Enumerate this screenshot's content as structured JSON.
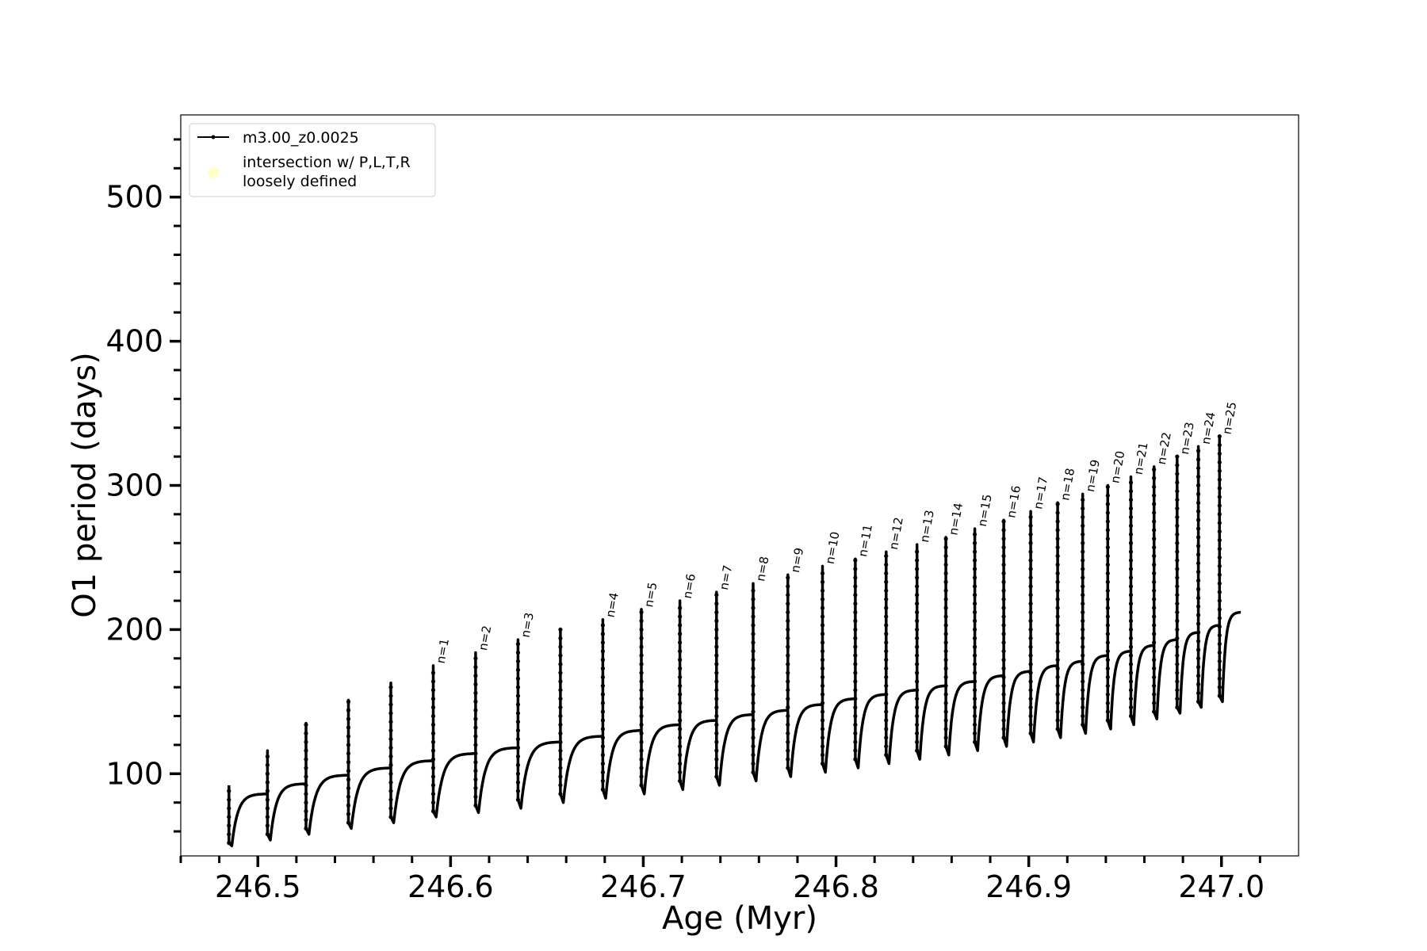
{
  "chart_data": {
    "type": "line",
    "xlabel": "Age (Myr)",
    "ylabel": "O1 period (days)",
    "xlim": [
      246.46,
      247.04
    ],
    "ylim": [
      43,
      557
    ],
    "xticks": [
      246.5,
      246.6,
      246.7,
      246.8,
      246.9,
      247.0
    ],
    "xtick_labels": [
      "246.5",
      "246.6",
      "246.7",
      "246.8",
      "246.9",
      "247.0"
    ],
    "yticks": [
      100,
      200,
      300,
      400,
      500
    ],
    "ytick_labels": [
      "100",
      "200",
      "300",
      "400",
      "500"
    ],
    "legend": {
      "position": "upper-left",
      "entries": [
        {
          "label": "m3.00_z0.0025",
          "marker": "line-dot",
          "color": "#000000"
        },
        {
          "label_line1": "intersection w/ P,L,T,R",
          "label_line2": "loosely defined",
          "marker": "circle",
          "color": "#ffffc8"
        }
      ]
    },
    "series": [
      {
        "name": "m3.00_z0.0025",
        "color": "#000000",
        "start_age": 246.485,
        "end_age": 247.01,
        "end_period": 212,
        "pulses": [
          {
            "age": 246.485,
            "peak": 92,
            "base": 52,
            "dip": 50,
            "plateau": 86
          },
          {
            "age": 246.505,
            "peak": 116,
            "base": 58,
            "dip": 54,
            "plateau": 93
          },
          {
            "age": 246.525,
            "peak": 135,
            "base": 62,
            "dip": 58,
            "plateau": 99
          },
          {
            "age": 246.547,
            "peak": 151,
            "base": 66,
            "dip": 62,
            "plateau": 104
          },
          {
            "age": 246.569,
            "peak": 163,
            "base": 70,
            "dip": 66,
            "plateau": 109
          },
          {
            "age": 246.591,
            "peak": 175,
            "base": 74,
            "dip": 70,
            "plateau": 114
          },
          {
            "age": 246.613,
            "peak": 184,
            "base": 78,
            "dip": 73,
            "plateau": 118
          },
          {
            "age": 246.635,
            "peak": 193,
            "base": 82,
            "dip": 76,
            "plateau": 122
          },
          {
            "age": 246.657,
            "peak": 200,
            "base": 86,
            "dip": 80,
            "plateau": 126
          },
          {
            "age": 246.679,
            "peak": 207,
            "base": 89,
            "dip": 83,
            "plateau": 130
          },
          {
            "age": 246.699,
            "peak": 214,
            "base": 92,
            "dip": 86,
            "plateau": 134
          },
          {
            "age": 246.719,
            "peak": 220,
            "base": 95,
            "dip": 89,
            "plateau": 137
          },
          {
            "age": 246.738,
            "peak": 226,
            "base": 98,
            "dip": 92,
            "plateau": 141
          },
          {
            "age": 246.757,
            "peak": 232,
            "base": 101,
            "dip": 95,
            "plateau": 144
          },
          {
            "age": 246.775,
            "peak": 238,
            "base": 104,
            "dip": 98,
            "plateau": 148
          },
          {
            "age": 246.793,
            "peak": 244,
            "base": 107,
            "dip": 101,
            "plateau": 152
          },
          {
            "age": 246.81,
            "peak": 249,
            "base": 110,
            "dip": 104,
            "plateau": 155
          },
          {
            "age": 246.826,
            "peak": 254,
            "base": 113,
            "dip": 107,
            "plateau": 158
          },
          {
            "age": 246.842,
            "peak": 259,
            "base": 116,
            "dip": 110,
            "plateau": 161
          },
          {
            "age": 246.857,
            "peak": 264,
            "base": 119,
            "dip": 113,
            "plateau": 164
          },
          {
            "age": 246.872,
            "peak": 270,
            "base": 122,
            "dip": 116,
            "plateau": 168
          },
          {
            "age": 246.887,
            "peak": 276,
            "base": 125,
            "dip": 119,
            "plateau": 171
          },
          {
            "age": 246.901,
            "peak": 282,
            "base": 128,
            "dip": 122,
            "plateau": 175
          },
          {
            "age": 246.915,
            "peak": 288,
            "base": 131,
            "dip": 125,
            "plateau": 178
          },
          {
            "age": 246.928,
            "peak": 294,
            "base": 134,
            "dip": 128,
            "plateau": 182
          },
          {
            "age": 246.941,
            "peak": 300,
            "base": 137,
            "dip": 131,
            "plateau": 185
          },
          {
            "age": 246.953,
            "peak": 306,
            "base": 140,
            "dip": 134,
            "plateau": 189
          },
          {
            "age": 246.965,
            "peak": 313,
            "base": 143,
            "dip": 138,
            "plateau": 193
          },
          {
            "age": 246.977,
            "peak": 320,
            "base": 146,
            "dip": 142,
            "plateau": 198
          },
          {
            "age": 246.988,
            "peak": 327,
            "base": 150,
            "dip": 146,
            "plateau": 203
          },
          {
            "age": 246.999,
            "peak": 334,
            "base": 154,
            "dip": 150,
            "plateau": 208
          }
        ]
      }
    ],
    "annotations": [
      {
        "text": "n=1",
        "pulse_index": 5
      },
      {
        "text": "n=2",
        "pulse_index": 6
      },
      {
        "text": "n=3",
        "pulse_index": 7
      },
      {
        "text": "n=4",
        "pulse_index": 9
      },
      {
        "text": "n=5",
        "pulse_index": 10
      },
      {
        "text": "n=6",
        "pulse_index": 11
      },
      {
        "text": "n=7",
        "pulse_index": 12
      },
      {
        "text": "n=8",
        "pulse_index": 13
      },
      {
        "text": "n=9",
        "pulse_index": 14
      },
      {
        "text": "n=10",
        "pulse_index": 15
      },
      {
        "text": "n=11",
        "pulse_index": 16
      },
      {
        "text": "n=12",
        "pulse_index": 17
      },
      {
        "text": "n=13",
        "pulse_index": 18
      },
      {
        "text": "n=14",
        "pulse_index": 19
      },
      {
        "text": "n=15",
        "pulse_index": 20
      },
      {
        "text": "n=16",
        "pulse_index": 21
      },
      {
        "text": "n=17",
        "pulse_index": 22
      },
      {
        "text": "n=18",
        "pulse_index": 23
      },
      {
        "text": "n=19",
        "pulse_index": 24
      },
      {
        "text": "n=20",
        "pulse_index": 25
      },
      {
        "text": "n=21",
        "pulse_index": 26
      },
      {
        "text": "n=22",
        "pulse_index": 27
      },
      {
        "text": "n=23",
        "pulse_index": 28
      },
      {
        "text": "n=24",
        "pulse_index": 29
      },
      {
        "text": "n=25",
        "pulse_index": 30
      }
    ],
    "grid": false
  }
}
